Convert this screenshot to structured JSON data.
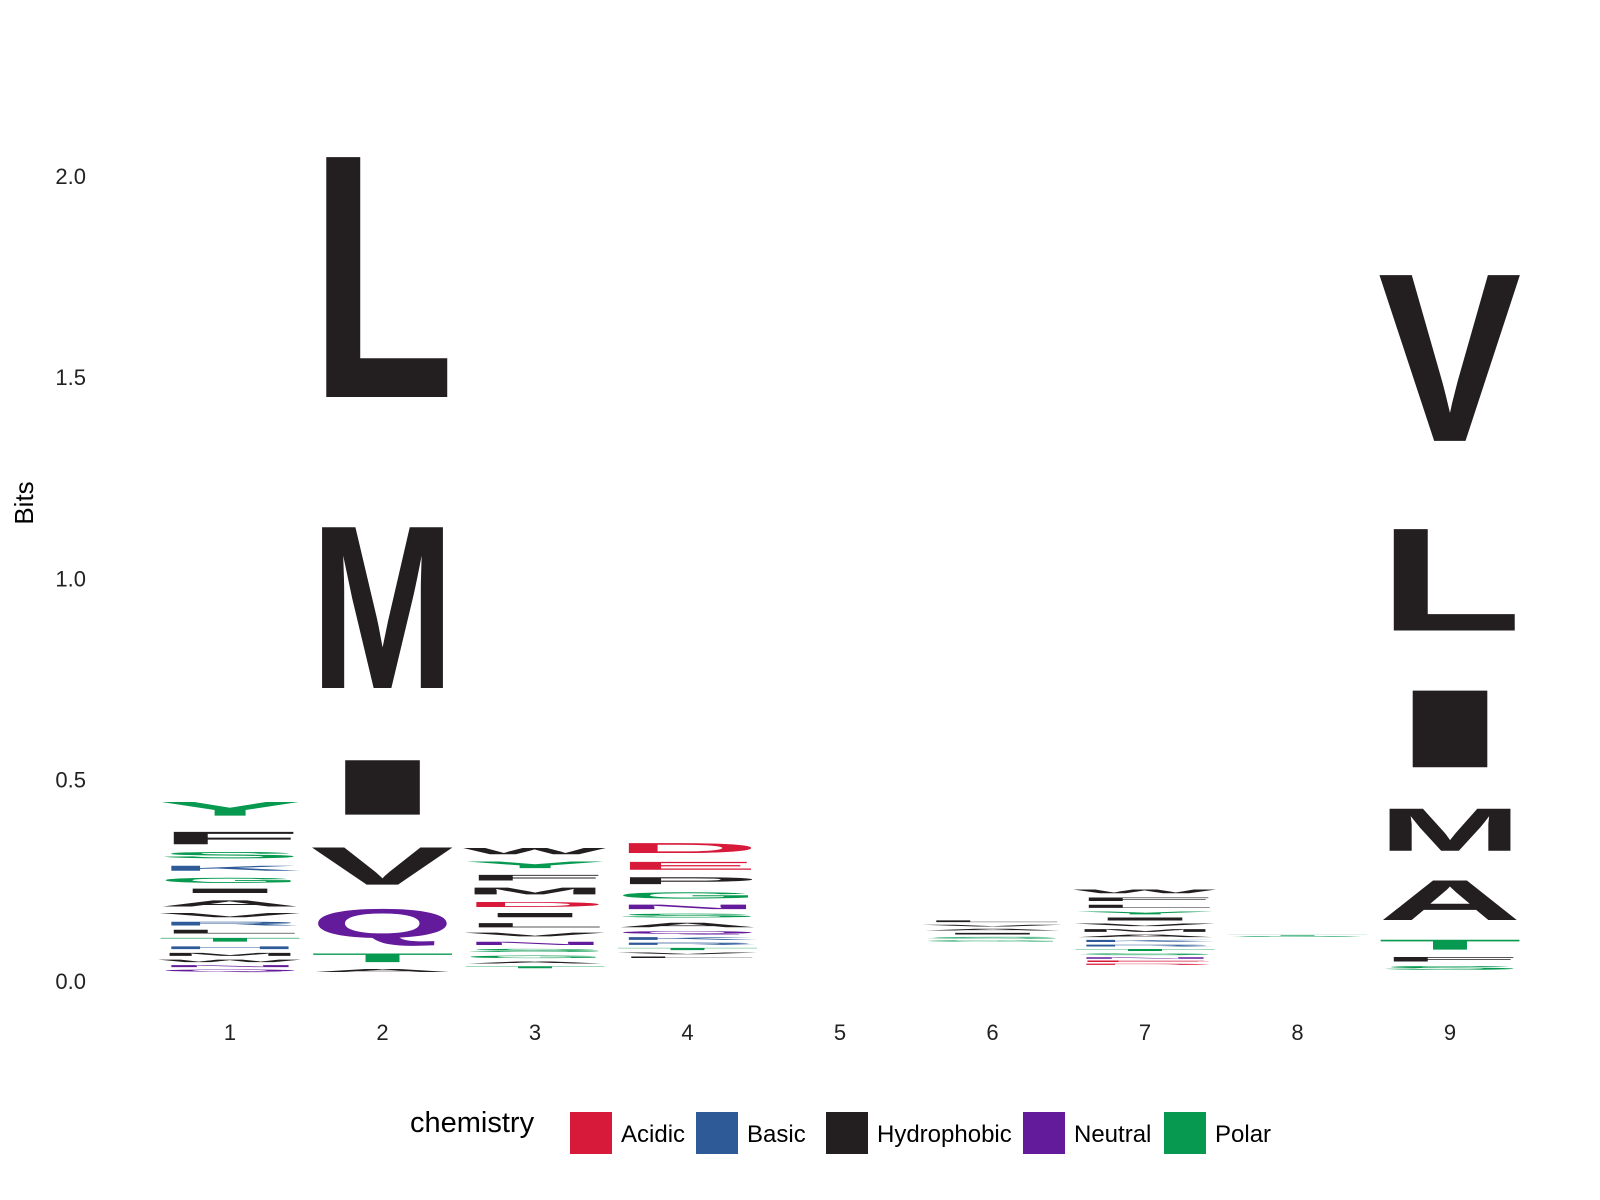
{
  "chart_data": {
    "type": "sequence-logo",
    "ylabel": "Bits",
    "xlabel": "",
    "ylim": [
      0,
      2.3
    ],
    "y_ticks": [
      "0.0",
      "0.5",
      "1.0",
      "1.5",
      "2.0"
    ],
    "positions": [
      "1",
      "2",
      "3",
      "4",
      "5",
      "6",
      "7",
      "8",
      "9"
    ],
    "legend": {
      "title": "chemistry",
      "position": "bottom",
      "items": [
        {
          "label": "Acidic",
          "color": "#D7193A"
        },
        {
          "label": "Basic",
          "color": "#2E5B98"
        },
        {
          "label": "Hydrophobic",
          "color": "#231F20"
        },
        {
          "label": "Neutral",
          "color": "#631A9B"
        },
        {
          "label": "Polar",
          "color": "#06994F"
        }
      ]
    },
    "stacks": [
      {
        "position": "1",
        "letters": [
          {
            "l": "Y",
            "y0": 0.4,
            "y1": 0.455,
            "c": "Polar"
          },
          {
            "l": "F",
            "y0": 0.33,
            "y1": 0.38,
            "c": "Hydrophobic"
          },
          {
            "l": "S",
            "y0": 0.3,
            "y1": 0.325,
            "c": "Polar"
          },
          {
            "l": "K",
            "y0": 0.27,
            "y1": 0.29,
            "c": "Basic"
          },
          {
            "l": "G",
            "y0": 0.24,
            "y1": 0.26,
            "c": "Polar"
          },
          {
            "l": "I",
            "y0": 0.215,
            "y1": 0.233,
            "c": "Hydrophobic"
          },
          {
            "l": "A",
            "y0": 0.18,
            "y1": 0.205,
            "c": "Hydrophobic"
          },
          {
            "l": "V",
            "y0": 0.155,
            "y1": 0.172,
            "c": "Hydrophobic"
          },
          {
            "l": "R",
            "y0": 0.135,
            "y1": 0.15,
            "c": "Basic"
          },
          {
            "l": "L",
            "y0": 0.115,
            "y1": 0.13,
            "c": "Hydrophobic"
          },
          {
            "l": "T",
            "y0": 0.095,
            "y1": 0.11,
            "c": "Polar"
          },
          {
            "l": "H",
            "y0": 0.077,
            "y1": 0.088,
            "c": "Basic"
          },
          {
            "l": "M",
            "y0": 0.06,
            "y1": 0.072,
            "c": "Hydrophobic"
          },
          {
            "l": "W",
            "y0": 0.045,
            "y1": 0.055,
            "c": "Hydrophobic"
          },
          {
            "l": "N",
            "y0": 0.033,
            "y1": 0.041,
            "c": "Neutral"
          },
          {
            "l": "Q",
            "y0": 0.022,
            "y1": 0.03,
            "c": "Neutral"
          }
        ]
      },
      {
        "position": "2",
        "letters": [
          {
            "l": "L",
            "y0": 1.26,
            "y1": 2.23,
            "c": "Hydrophobic"
          },
          {
            "l": "M",
            "y0": 0.6,
            "y1": 1.25,
            "c": "Hydrophobic"
          },
          {
            "l": "I",
            "y0": 0.37,
            "y1": 0.59,
            "c": "Hydrophobic"
          },
          {
            "l": "V",
            "y0": 0.21,
            "y1": 0.36,
            "c": "Hydrophobic"
          },
          {
            "l": "Q",
            "y0": 0.085,
            "y1": 0.2,
            "c": "Neutral"
          },
          {
            "l": "T",
            "y0": 0.04,
            "y1": 0.075,
            "c": "Polar"
          },
          {
            "l": "A",
            "y0": 0.02,
            "y1": 0.032,
            "c": "Hydrophobic"
          }
        ]
      },
      {
        "position": "3",
        "letters": [
          {
            "l": "W",
            "y0": 0.31,
            "y1": 0.335,
            "c": "Hydrophobic"
          },
          {
            "l": "Y",
            "y0": 0.275,
            "y1": 0.302,
            "c": "Polar"
          },
          {
            "l": "F",
            "y0": 0.245,
            "y1": 0.268,
            "c": "Hydrophobic"
          },
          {
            "l": "M",
            "y0": 0.21,
            "y1": 0.237,
            "c": "Hydrophobic"
          },
          {
            "l": "D",
            "y0": 0.18,
            "y1": 0.2,
            "c": "Acidic"
          },
          {
            "l": "I",
            "y0": 0.155,
            "y1": 0.172,
            "c": "Hydrophobic"
          },
          {
            "l": "L",
            "y0": 0.13,
            "y1": 0.147,
            "c": "Hydrophobic"
          },
          {
            "l": "V",
            "y0": 0.108,
            "y1": 0.123,
            "c": "Hydrophobic"
          },
          {
            "l": "N",
            "y0": 0.087,
            "y1": 0.1,
            "c": "Neutral"
          },
          {
            "l": "S",
            "y0": 0.07,
            "y1": 0.082,
            "c": "Polar"
          },
          {
            "l": "G",
            "y0": 0.055,
            "y1": 0.065,
            "c": "Polar"
          },
          {
            "l": "A",
            "y0": 0.042,
            "y1": 0.05,
            "c": "Hydrophobic"
          },
          {
            "l": "T",
            "y0": 0.03,
            "y1": 0.038,
            "c": "Polar"
          }
        ]
      },
      {
        "position": "4",
        "letters": [
          {
            "l": "D",
            "y0": 0.31,
            "y1": 0.35,
            "c": "Acidic"
          },
          {
            "l": "E",
            "y0": 0.27,
            "y1": 0.302,
            "c": "Acidic"
          },
          {
            "l": "P",
            "y0": 0.235,
            "y1": 0.263,
            "c": "Hydrophobic"
          },
          {
            "l": "G",
            "y0": 0.2,
            "y1": 0.225,
            "c": "Polar"
          },
          {
            "l": "N",
            "y0": 0.175,
            "y1": 0.193,
            "c": "Neutral"
          },
          {
            "l": "S",
            "y0": 0.155,
            "y1": 0.17,
            "c": "Polar"
          },
          {
            "l": "A",
            "y0": 0.13,
            "y1": 0.148,
            "c": "Hydrophobic"
          },
          {
            "l": "Q",
            "y0": 0.115,
            "y1": 0.126,
            "c": "Neutral"
          },
          {
            "l": "K",
            "y0": 0.1,
            "y1": 0.111,
            "c": "Basic"
          },
          {
            "l": "R",
            "y0": 0.088,
            "y1": 0.097,
            "c": "Basic"
          },
          {
            "l": "T",
            "y0": 0.075,
            "y1": 0.084,
            "c": "Polar"
          },
          {
            "l": "V",
            "y0": 0.065,
            "y1": 0.072,
            "c": "Hydrophobic"
          },
          {
            "l": "L",
            "y0": 0.056,
            "y1": 0.062,
            "c": "Hydrophobic"
          }
        ]
      },
      {
        "position": "5",
        "letters": []
      },
      {
        "position": "6",
        "letters": [
          {
            "l": "L",
            "y0": 0.145,
            "y1": 0.152,
            "c": "Hydrophobic"
          },
          {
            "l": "V",
            "y0": 0.134,
            "y1": 0.141,
            "c": "Hydrophobic"
          },
          {
            "l": "A",
            "y0": 0.124,
            "y1": 0.131,
            "c": "Hydrophobic"
          },
          {
            "l": "I",
            "y0": 0.114,
            "y1": 0.121,
            "c": "Hydrophobic"
          },
          {
            "l": "S",
            "y0": 0.104,
            "y1": 0.111,
            "c": "Polar"
          },
          {
            "l": "G",
            "y0": 0.097,
            "y1": 0.102,
            "c": "Polar"
          }
        ]
      },
      {
        "position": "7",
        "letters": [
          {
            "l": "W",
            "y0": 0.215,
            "y1": 0.23,
            "c": "Hydrophobic"
          },
          {
            "l": "F",
            "y0": 0.196,
            "y1": 0.21,
            "c": "Hydrophobic"
          },
          {
            "l": "L",
            "y0": 0.179,
            "y1": 0.192,
            "c": "Hydrophobic"
          },
          {
            "l": "Y",
            "y0": 0.163,
            "y1": 0.175,
            "c": "Polar"
          },
          {
            "l": "I",
            "y0": 0.148,
            "y1": 0.16,
            "c": "Hydrophobic"
          },
          {
            "l": "V",
            "y0": 0.134,
            "y1": 0.145,
            "c": "Hydrophobic"
          },
          {
            "l": "M",
            "y0": 0.12,
            "y1": 0.131,
            "c": "Hydrophobic"
          },
          {
            "l": "A",
            "y0": 0.107,
            "y1": 0.117,
            "c": "Hydrophobic"
          },
          {
            "l": "K",
            "y0": 0.095,
            "y1": 0.104,
            "c": "Basic"
          },
          {
            "l": "R",
            "y0": 0.084,
            "y1": 0.092,
            "c": "Basic"
          },
          {
            "l": "T",
            "y0": 0.073,
            "y1": 0.081,
            "c": "Polar"
          },
          {
            "l": "S",
            "y0": 0.063,
            "y1": 0.07,
            "c": "Polar"
          },
          {
            "l": "N",
            "y0": 0.054,
            "y1": 0.06,
            "c": "Neutral"
          },
          {
            "l": "E",
            "y0": 0.046,
            "y1": 0.052,
            "c": "Acidic"
          },
          {
            "l": "D",
            "y0": 0.039,
            "y1": 0.044,
            "c": "Acidic"
          }
        ]
      },
      {
        "position": "8",
        "letters": [
          {
            "l": "T",
            "y0": 0.112,
            "y1": 0.115,
            "c": "Polar"
          },
          {
            "l": "S",
            "y0": 0.109,
            "y1": 0.112,
            "c": "Polar"
          }
        ]
      },
      {
        "position": "9",
        "letters": [
          {
            "l": "V",
            "y0": 1.21,
            "y1": 1.88,
            "c": "Hydrophobic"
          },
          {
            "l": "L",
            "y0": 0.79,
            "y1": 1.2,
            "c": "Hydrophobic"
          },
          {
            "l": "I",
            "y0": 0.47,
            "y1": 0.78,
            "c": "Hydrophobic"
          },
          {
            "l": "M",
            "y0": 0.29,
            "y1": 0.46,
            "c": "Hydrophobic"
          },
          {
            "l": "A",
            "y0": 0.12,
            "y1": 0.28,
            "c": "Hydrophobic"
          },
          {
            "l": "T",
            "y0": 0.07,
            "y1": 0.11,
            "c": "Polar"
          },
          {
            "l": "F",
            "y0": 0.045,
            "y1": 0.063,
            "c": "Hydrophobic"
          },
          {
            "l": "S",
            "y0": 0.025,
            "y1": 0.04,
            "c": "Polar"
          }
        ]
      }
    ]
  }
}
